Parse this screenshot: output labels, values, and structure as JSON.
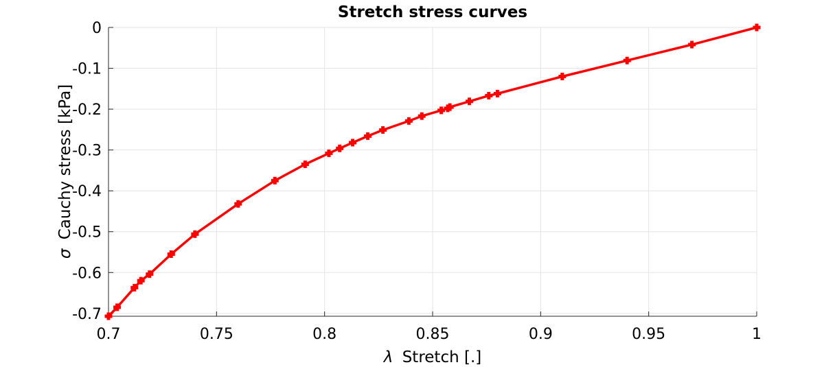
{
  "chart_data": {
    "type": "line",
    "title": "Stretch stress curves",
    "xlabel_symbol": "λ",
    "xlabel": "Stretch [.]",
    "ylabel_symbol": "σ",
    "ylabel": "Cauchy stress [kPa]",
    "xlim": [
      0.7,
      1.0
    ],
    "ylim": [
      -0.707,
      0.0
    ],
    "xticks": [
      0.7,
      0.75,
      0.8,
      0.85,
      0.9,
      0.95,
      1.0
    ],
    "xtick_labels": [
      "0.7",
      "0.75",
      "0.8",
      "0.85",
      "0.9",
      "0.95",
      "1"
    ],
    "yticks": [
      0,
      -0.1,
      -0.2,
      -0.3,
      -0.4,
      -0.5,
      -0.6,
      -0.7
    ],
    "ytick_labels": [
      "0",
      "-0.1",
      "-0.2",
      "-0.3",
      "-0.4",
      "-0.5",
      "-0.6",
      "-0.7"
    ],
    "grid": true,
    "line_color": "#ff0000",
    "marker": "plus",
    "series": [
      {
        "x": [
          0.7,
          0.704,
          0.712,
          0.715,
          0.719,
          0.729,
          0.74,
          0.76,
          0.777,
          0.791,
          0.802,
          0.807,
          0.813,
          0.82,
          0.827,
          0.839,
          0.845,
          0.854,
          0.857,
          0.858,
          0.867,
          0.876,
          0.88,
          0.91,
          0.94,
          0.97,
          1.0
        ],
        "y": [
          -0.707,
          -0.685,
          -0.637,
          -0.62,
          -0.604,
          -0.555,
          -0.506,
          -0.432,
          -0.375,
          -0.335,
          -0.308,
          -0.296,
          -0.282,
          -0.266,
          -0.251,
          -0.229,
          -0.217,
          -0.203,
          -0.198,
          -0.195,
          -0.181,
          -0.167,
          -0.162,
          -0.12,
          -0.081,
          -0.042,
          0.0
        ]
      }
    ]
  }
}
